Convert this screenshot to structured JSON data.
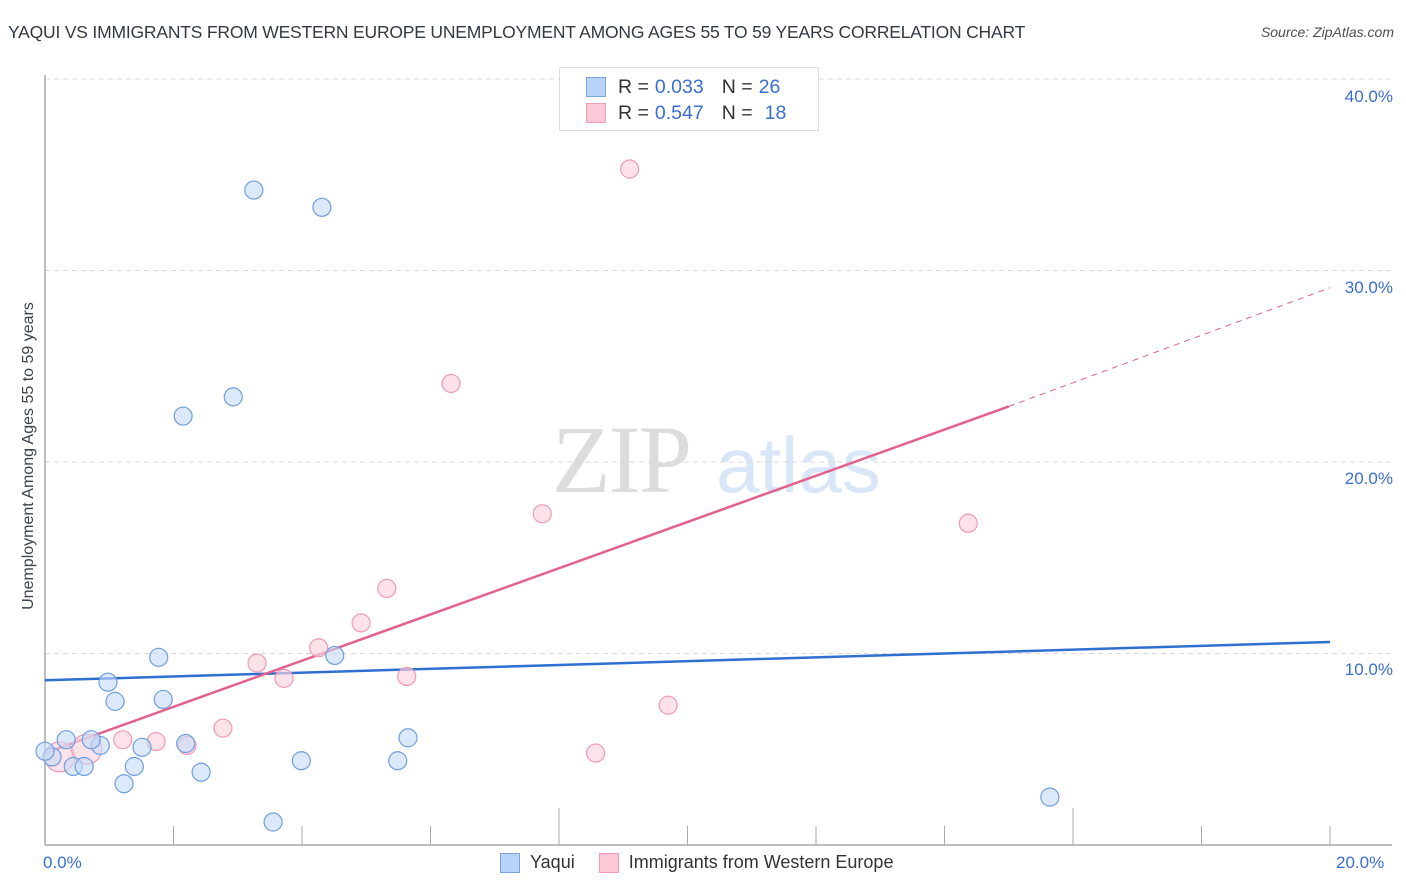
{
  "header": {
    "title": "YAQUI VS IMMIGRANTS FROM WESTERN EUROPE UNEMPLOYMENT AMONG AGES 55 TO 59 YEARS CORRELATION CHART",
    "source": "Source: ZipAtlas.com"
  },
  "watermark": {
    "zip": "ZIP",
    "atlas": "atlas"
  },
  "legend": {
    "rows": [
      {
        "r_label": "R =",
        "r_value": "0.033",
        "n_label": "N =",
        "n_value": "26",
        "color": "#b8d3f5",
        "border": "#7ba5e0"
      },
      {
        "r_label": "R =",
        "r_value": "0.547",
        "n_label": "N =",
        "n_value": "18",
        "color": "#fbc9d8",
        "border": "#f09ab6"
      }
    ]
  },
  "bottom_legend": {
    "items": [
      {
        "label": "Yaqui"
      },
      {
        "label": "Immigrants from Western Europe"
      }
    ]
  },
  "axes": {
    "ylabel": "Unemployment Among Ages 55 to 59 years",
    "x_min_label": "0.0%",
    "x_max_label": "20.0%",
    "y_tick_labels": [
      "10.0%",
      "20.0%",
      "30.0%",
      "40.0%"
    ]
  },
  "colors": {
    "yaqui_fill": "#c5dbf6",
    "yaqui_stroke": "#6f9ee0",
    "yaqui_line": "#2f6fcf",
    "imm_fill": "#fcd3df",
    "imm_stroke": "#ee9bb5",
    "imm_line": "#e3618c",
    "grid": "#d9d9d9",
    "axis": "#aaaaaa",
    "tick_text": "#3a6fd1"
  },
  "chart_data": {
    "type": "scatter",
    "title": "YAQUI VS IMMIGRANTS FROM WESTERN EUROPE UNEMPLOYMENT AMONG AGES 55 TO 59 YEARS CORRELATION CHART",
    "xlabel": "",
    "ylabel": "Unemployment Among Ages 55 to 59 years",
    "xlim": [
      0,
      20
    ],
    "ylim": [
      0,
      41
    ],
    "x_ticks": [
      "0.0%",
      "20.0%"
    ],
    "y_ticks": [
      "10.0%",
      "20.0%",
      "30.0%",
      "40.0%"
    ],
    "grid": true,
    "legend_position": "top-center",
    "series": [
      {
        "name": "Yaqui",
        "R": 0.033,
        "N": 26,
        "trend": {
          "x": [
            0,
            20
          ],
          "y": [
            8.6,
            10.6
          ],
          "style": "solid"
        },
        "points": [
          [
            3.25,
            34.2
          ],
          [
            4.31,
            33.3
          ],
          [
            2.15,
            22.4
          ],
          [
            2.93,
            23.4
          ],
          [
            1.77,
            9.8
          ],
          [
            4.51,
            9.9
          ],
          [
            0.98,
            8.5
          ],
          [
            1.09,
            7.5
          ],
          [
            1.84,
            7.6
          ],
          [
            0.33,
            5.5
          ],
          [
            0.86,
            5.2
          ],
          [
            1.51,
            5.1
          ],
          [
            2.19,
            5.3
          ],
          [
            5.65,
            5.6
          ],
          [
            0.11,
            4.6
          ],
          [
            0.44,
            4.1
          ],
          [
            0.61,
            4.1
          ],
          [
            1.39,
            4.1
          ],
          [
            3.99,
            4.4
          ],
          [
            5.49,
            4.4
          ],
          [
            2.43,
            3.8
          ],
          [
            1.23,
            3.2
          ],
          [
            3.55,
            1.2
          ],
          [
            15.64,
            2.5
          ],
          [
            0.0,
            4.9
          ],
          [
            0.72,
            5.5
          ]
        ]
      },
      {
        "name": "Immigrants from Western Europe",
        "R": 0.547,
        "N": 18,
        "trend": {
          "x": [
            0,
            15.0,
            20
          ],
          "y": [
            4.8,
            22.9,
            29.1
          ],
          "style": "solid then dashed after x=15"
        },
        "points": [
          [
            9.1,
            35.3
          ],
          [
            6.32,
            24.1
          ],
          [
            7.74,
            17.3
          ],
          [
            14.37,
            16.8
          ],
          [
            5.32,
            13.4
          ],
          [
            4.92,
            11.6
          ],
          [
            4.26,
            10.3
          ],
          [
            3.3,
            9.5
          ],
          [
            3.72,
            8.7
          ],
          [
            5.63,
            8.8
          ],
          [
            9.7,
            7.3
          ],
          [
            2.77,
            6.1
          ],
          [
            1.73,
            5.4
          ],
          [
            1.21,
            5.5
          ],
          [
            2.21,
            5.2
          ],
          [
            8.57,
            4.8
          ],
          [
            0.23,
            4.6
          ],
          [
            0.65,
            5.0
          ]
        ]
      }
    ]
  }
}
